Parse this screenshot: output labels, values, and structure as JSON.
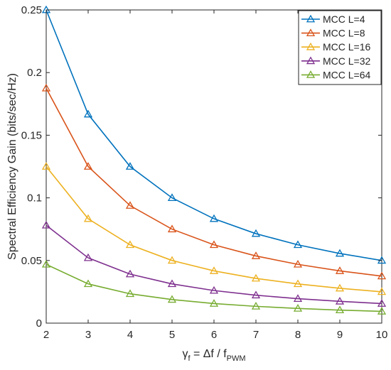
{
  "chart_data": {
    "type": "line",
    "title": "",
    "xlabel": {
      "prefix": "γ",
      "prefix_sub": "f",
      "middle": " = Δf / f",
      "middle_sub": "PWM"
    },
    "ylabel": "Spectral Efficiency Gain (bits/sec/Hz)",
    "xlim": [
      2,
      10
    ],
    "ylim": [
      0,
      0.25
    ],
    "xticks": [
      2,
      3,
      4,
      5,
      6,
      7,
      8,
      9,
      10
    ],
    "yticks": [
      0,
      0.05,
      0.1,
      0.15,
      0.2,
      0.25
    ],
    "ytick_labels": [
      "0",
      "0.05",
      "0.1",
      "0.15",
      "0.2",
      "0.25"
    ],
    "grid": false,
    "legend_position": "top-right",
    "marker": "triangle",
    "x": [
      2,
      3,
      4,
      5,
      6,
      7,
      8,
      9,
      10
    ],
    "series": [
      {
        "name": "MCC L=4",
        "color": "#0072BD",
        "values": [
          0.25,
          0.1667,
          0.125,
          0.1,
          0.0833,
          0.0714,
          0.0625,
          0.0556,
          0.05
        ]
      },
      {
        "name": "MCC L=8",
        "color": "#D95319",
        "values": [
          0.1875,
          0.125,
          0.0938,
          0.075,
          0.0625,
          0.0536,
          0.0469,
          0.0417,
          0.0375
        ]
      },
      {
        "name": "MCC L=16",
        "color": "#EDB120",
        "values": [
          0.125,
          0.0833,
          0.0625,
          0.05,
          0.0417,
          0.0357,
          0.0313,
          0.0278,
          0.025
        ]
      },
      {
        "name": "MCC L=32",
        "color": "#7E2F8E",
        "values": [
          0.0781,
          0.0521,
          0.0391,
          0.0313,
          0.026,
          0.0223,
          0.0195,
          0.0174,
          0.0156
        ]
      },
      {
        "name": "MCC L=64",
        "color": "#77AC30",
        "values": [
          0.0469,
          0.0313,
          0.0234,
          0.0188,
          0.0156,
          0.0134,
          0.0117,
          0.0104,
          0.0094
        ]
      }
    ]
  }
}
